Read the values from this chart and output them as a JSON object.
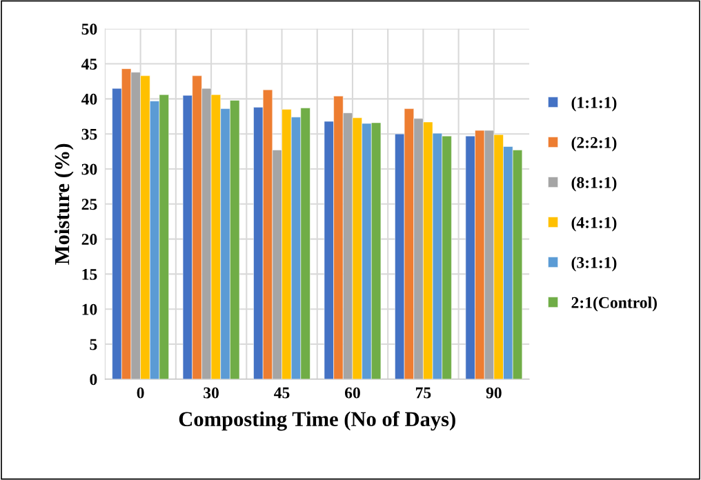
{
  "chart_data": {
    "type": "bar",
    "xlabel": "Composting Time (No of Days)",
    "ylabel": "Moisture (%)",
    "categories": [
      "0",
      "30",
      "45",
      "60",
      "75",
      "90"
    ],
    "series": [
      {
        "name": "(1:1:1)",
        "color": "#4472c4",
        "values": [
          41.5,
          40.5,
          38.8,
          36.8,
          35.0,
          34.7
        ]
      },
      {
        "name": "(2:2:1)",
        "color": "#ed7d31",
        "values": [
          44.3,
          43.3,
          41.3,
          40.4,
          38.6,
          35.5
        ]
      },
      {
        "name": "(8:1:1)",
        "color": "#a5a5a5",
        "values": [
          43.8,
          41.5,
          32.7,
          38.0,
          37.2,
          35.5
        ]
      },
      {
        "name": "(4:1:1)",
        "color": "#ffc000",
        "values": [
          43.3,
          40.6,
          38.5,
          37.3,
          36.7,
          34.9
        ]
      },
      {
        "name": "(3:1:1)",
        "color": "#5b9bd5",
        "values": [
          39.7,
          38.6,
          37.4,
          36.5,
          35.1,
          33.2
        ]
      },
      {
        "name": "2:1(Control)",
        "color": "#70ad47",
        "values": [
          40.6,
          39.8,
          38.7,
          36.6,
          34.7,
          32.7
        ]
      }
    ],
    "ylim": [
      0,
      50
    ],
    "yticks": [
      0,
      5,
      10,
      15,
      20,
      25,
      30,
      35,
      40,
      45,
      50
    ],
    "grid": true,
    "legend": "right"
  }
}
